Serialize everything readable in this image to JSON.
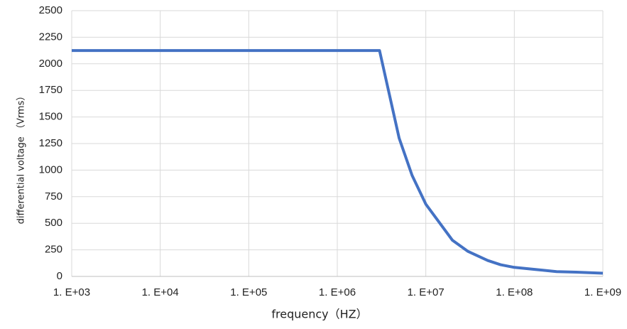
{
  "chart_data": {
    "type": "line",
    "x_label": "frequency（HZ）",
    "y_label": "differential voltage （Vrms）",
    "x_scale": "log",
    "xlim": [
      1000,
      1000000000
    ],
    "xticks": [
      {
        "value": 1000,
        "label": "1. E+03"
      },
      {
        "value": 10000,
        "label": "1. E+04"
      },
      {
        "value": 100000,
        "label": "1. E+05"
      },
      {
        "value": 1000000,
        "label": "1. E+06"
      },
      {
        "value": 10000000,
        "label": "1. E+07"
      },
      {
        "value": 100000000,
        "label": "1. E+08"
      },
      {
        "value": 1000000000,
        "label": "1. E+09"
      }
    ],
    "ylim": [
      0,
      2500
    ],
    "yticks": [
      0,
      250,
      500,
      750,
      1000,
      1250,
      1500,
      1750,
      2000,
      2250,
      2500
    ],
    "grid": true,
    "x": [
      1000,
      3000000,
      5000000,
      7000000,
      10000000,
      20000000,
      30000000,
      50000000,
      70000000,
      100000000,
      200000000,
      300000000,
      500000000,
      1000000000
    ],
    "series": [
      {
        "color": "#4472c4",
        "values": [
          2125,
          2125,
          1300,
          950,
          680,
          340,
          235,
          150,
          110,
          85,
          60,
          45,
          40,
          30
        ]
      }
    ]
  }
}
